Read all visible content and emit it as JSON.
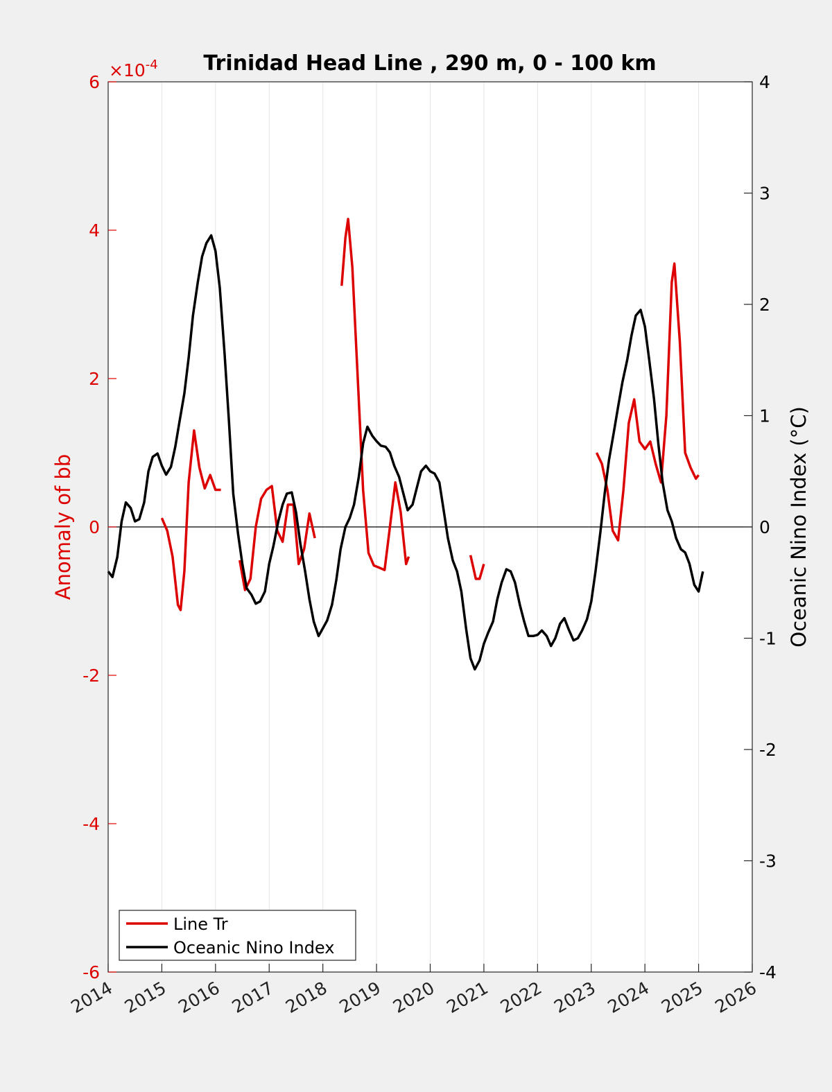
{
  "chart_data": {
    "type": "line",
    "title": "Trinidad Head Line , 290 m, 0 - 100 km",
    "xlim": [
      2014,
      2026
    ],
    "x_ticks": [
      "2014",
      "2015",
      "2016",
      "2017",
      "2018",
      "2019",
      "2020",
      "2021",
      "2022",
      "2023",
      "2024",
      "2025",
      "2026"
    ],
    "y_left": {
      "label": "Anomaly of bb",
      "exponent_label": "×10",
      "exponent_power": "-4",
      "range": [
        -6,
        6
      ],
      "ticks": [
        "-6",
        "-4",
        "-2",
        "0",
        "2",
        "4",
        "6"
      ],
      "color": "#dd0000"
    },
    "y_right": {
      "label": "Oceanic Nino Index (°C)",
      "range": [
        -4,
        4
      ],
      "ticks": [
        "-4",
        "-3",
        "-2",
        "-1",
        "0",
        "1",
        "2",
        "3",
        "4"
      ],
      "color": "#000000"
    },
    "grid": "vertical",
    "zero_line": true,
    "legend": {
      "location": "bottom-left",
      "entries": [
        {
          "label": "Line Tr",
          "color": "#dd0000"
        },
        {
          "label": "Oceanic Nino Index",
          "color": "#000000"
        }
      ]
    },
    "series": [
      {
        "name": "Line Tr",
        "axis": "left",
        "color": "#dd0000",
        "segments": [
          [
            [
              2015.0,
              0.12
            ],
            [
              2015.1,
              -0.05
            ],
            [
              2015.2,
              -0.4
            ],
            [
              2015.3,
              -1.05
            ],
            [
              2015.35,
              -1.12
            ],
            [
              2015.42,
              -0.6
            ],
            [
              2015.5,
              0.6
            ],
            [
              2015.6,
              1.3
            ],
            [
              2015.7,
              0.8
            ],
            [
              2015.8,
              0.52
            ],
            [
              2015.9,
              0.7
            ],
            [
              2016.0,
              0.5
            ],
            [
              2016.1,
              0.5
            ]
          ],
          [
            [
              2016.45,
              -0.45
            ],
            [
              2016.55,
              -0.85
            ],
            [
              2016.65,
              -0.7
            ],
            [
              2016.75,
              0.0
            ],
            [
              2016.85,
              0.38
            ],
            [
              2016.95,
              0.5
            ],
            [
              2017.05,
              0.55
            ],
            [
              2017.15,
              -0.05
            ],
            [
              2017.25,
              -0.2
            ],
            [
              2017.35,
              0.3
            ],
            [
              2017.45,
              0.3
            ],
            [
              2017.55,
              -0.5
            ],
            [
              2017.65,
              -0.3
            ],
            [
              2017.75,
              0.18
            ],
            [
              2017.85,
              -0.15
            ]
          ],
          [
            [
              2018.35,
              3.25
            ],
            [
              2018.42,
              3.9
            ],
            [
              2018.47,
              4.15
            ],
            [
              2018.55,
              3.5
            ],
            [
              2018.65,
              2.0
            ],
            [
              2018.75,
              0.5
            ],
            [
              2018.85,
              -0.35
            ],
            [
              2018.95,
              -0.52
            ],
            [
              2019.05,
              -0.55
            ],
            [
              2019.15,
              -0.58
            ],
            [
              2019.25,
              0.0
            ],
            [
              2019.35,
              0.6
            ],
            [
              2019.45,
              0.2
            ],
            [
              2019.55,
              -0.5
            ],
            [
              2019.6,
              -0.4
            ]
          ],
          [
            [
              2020.75,
              -0.38
            ],
            [
              2020.85,
              -0.7
            ],
            [
              2020.92,
              -0.7
            ],
            [
              2021.0,
              -0.5
            ]
          ],
          [
            [
              2023.1,
              1.0
            ],
            [
              2023.2,
              0.85
            ],
            [
              2023.3,
              0.5
            ],
            [
              2023.4,
              -0.05
            ],
            [
              2023.5,
              -0.18
            ],
            [
              2023.6,
              0.5
            ],
            [
              2023.7,
              1.4
            ],
            [
              2023.8,
              1.72
            ],
            [
              2023.9,
              1.15
            ],
            [
              2024.0,
              1.05
            ],
            [
              2024.1,
              1.15
            ],
            [
              2024.2,
              0.85
            ],
            [
              2024.3,
              0.6
            ],
            [
              2024.4,
              1.5
            ],
            [
              2024.5,
              3.3
            ],
            [
              2024.55,
              3.55
            ],
            [
              2024.65,
              2.5
            ],
            [
              2024.75,
              1.0
            ],
            [
              2024.85,
              0.8
            ],
            [
              2024.95,
              0.65
            ],
            [
              2025.0,
              0.7
            ]
          ]
        ]
      },
      {
        "name": "Oceanic Nino Index",
        "axis": "right",
        "color": "#000000",
        "points": [
          [
            2014.0,
            -0.4
          ],
          [
            2014.08,
            -0.45
          ],
          [
            2014.17,
            -0.27
          ],
          [
            2014.25,
            0.05
          ],
          [
            2014.33,
            0.22
          ],
          [
            2014.42,
            0.17
          ],
          [
            2014.5,
            0.05
          ],
          [
            2014.58,
            0.07
          ],
          [
            2014.67,
            0.22
          ],
          [
            2014.75,
            0.5
          ],
          [
            2014.83,
            0.63
          ],
          [
            2014.92,
            0.66
          ],
          [
            2015.0,
            0.55
          ],
          [
            2015.08,
            0.47
          ],
          [
            2015.17,
            0.54
          ],
          [
            2015.25,
            0.72
          ],
          [
            2015.33,
            0.95
          ],
          [
            2015.42,
            1.2
          ],
          [
            2015.5,
            1.52
          ],
          [
            2015.58,
            1.9
          ],
          [
            2015.67,
            2.2
          ],
          [
            2015.75,
            2.43
          ],
          [
            2015.83,
            2.55
          ],
          [
            2015.92,
            2.62
          ],
          [
            2016.0,
            2.48
          ],
          [
            2016.08,
            2.15
          ],
          [
            2016.17,
            1.55
          ],
          [
            2016.25,
            0.95
          ],
          [
            2016.33,
            0.3
          ],
          [
            2016.42,
            -0.06
          ],
          [
            2016.5,
            -0.33
          ],
          [
            2016.58,
            -0.55
          ],
          [
            2016.67,
            -0.61
          ],
          [
            2016.75,
            -0.69
          ],
          [
            2016.83,
            -0.67
          ],
          [
            2016.92,
            -0.58
          ],
          [
            2017.0,
            -0.33
          ],
          [
            2017.08,
            -0.17
          ],
          [
            2017.17,
            0.05
          ],
          [
            2017.25,
            0.2
          ],
          [
            2017.33,
            0.3
          ],
          [
            2017.42,
            0.31
          ],
          [
            2017.5,
            0.13
          ],
          [
            2017.58,
            -0.15
          ],
          [
            2017.67,
            -0.4
          ],
          [
            2017.75,
            -0.65
          ],
          [
            2017.83,
            -0.85
          ],
          [
            2017.92,
            -0.98
          ],
          [
            2018.0,
            -0.91
          ],
          [
            2018.08,
            -0.84
          ],
          [
            2018.17,
            -0.7
          ],
          [
            2018.25,
            -0.48
          ],
          [
            2018.33,
            -0.2
          ],
          [
            2018.42,
            0.0
          ],
          [
            2018.5,
            0.08
          ],
          [
            2018.58,
            0.2
          ],
          [
            2018.67,
            0.45
          ],
          [
            2018.75,
            0.75
          ],
          [
            2018.83,
            0.9
          ],
          [
            2018.92,
            0.82
          ],
          [
            2019.0,
            0.77
          ],
          [
            2019.08,
            0.73
          ],
          [
            2019.17,
            0.72
          ],
          [
            2019.25,
            0.67
          ],
          [
            2019.33,
            0.55
          ],
          [
            2019.42,
            0.45
          ],
          [
            2019.5,
            0.3
          ],
          [
            2019.58,
            0.15
          ],
          [
            2019.67,
            0.2
          ],
          [
            2019.75,
            0.35
          ],
          [
            2019.83,
            0.5
          ],
          [
            2019.92,
            0.55
          ],
          [
            2020.0,
            0.5
          ],
          [
            2020.08,
            0.48
          ],
          [
            2020.17,
            0.4
          ],
          [
            2020.25,
            0.15
          ],
          [
            2020.33,
            -0.1
          ],
          [
            2020.42,
            -0.3
          ],
          [
            2020.5,
            -0.4
          ],
          [
            2020.58,
            -0.58
          ],
          [
            2020.67,
            -0.92
          ],
          [
            2020.75,
            -1.18
          ],
          [
            2020.83,
            -1.28
          ],
          [
            2020.92,
            -1.2
          ],
          [
            2021.0,
            -1.05
          ],
          [
            2021.08,
            -0.95
          ],
          [
            2021.17,
            -0.85
          ],
          [
            2021.25,
            -0.65
          ],
          [
            2021.33,
            -0.5
          ],
          [
            2021.42,
            -0.38
          ],
          [
            2021.5,
            -0.4
          ],
          [
            2021.58,
            -0.5
          ],
          [
            2021.67,
            -0.7
          ],
          [
            2021.75,
            -0.85
          ],
          [
            2021.83,
            -0.98
          ],
          [
            2021.92,
            -0.98
          ],
          [
            2022.0,
            -0.97
          ],
          [
            2022.08,
            -0.93
          ],
          [
            2022.17,
            -0.98
          ],
          [
            2022.25,
            -1.07
          ],
          [
            2022.33,
            -1.0
          ],
          [
            2022.42,
            -0.87
          ],
          [
            2022.5,
            -0.82
          ],
          [
            2022.58,
            -0.92
          ],
          [
            2022.67,
            -1.02
          ],
          [
            2022.75,
            -1.0
          ],
          [
            2022.83,
            -0.93
          ],
          [
            2022.92,
            -0.83
          ],
          [
            2023.0,
            -0.67
          ],
          [
            2023.08,
            -0.4
          ],
          [
            2023.17,
            -0.05
          ],
          [
            2023.25,
            0.3
          ],
          [
            2023.33,
            0.6
          ],
          [
            2023.42,
            0.85
          ],
          [
            2023.5,
            1.08
          ],
          [
            2023.58,
            1.3
          ],
          [
            2023.67,
            1.5
          ],
          [
            2023.75,
            1.72
          ],
          [
            2023.83,
            1.9
          ],
          [
            2023.92,
            1.95
          ],
          [
            2024.0,
            1.8
          ],
          [
            2024.08,
            1.5
          ],
          [
            2024.17,
            1.15
          ],
          [
            2024.25,
            0.75
          ],
          [
            2024.33,
            0.4
          ],
          [
            2024.42,
            0.15
          ],
          [
            2024.5,
            0.05
          ],
          [
            2024.58,
            -0.1
          ],
          [
            2024.67,
            -0.2
          ],
          [
            2024.75,
            -0.23
          ],
          [
            2024.83,
            -0.33
          ],
          [
            2024.92,
            -0.52
          ],
          [
            2025.0,
            -0.58
          ],
          [
            2025.08,
            -0.4
          ]
        ]
      }
    ]
  }
}
